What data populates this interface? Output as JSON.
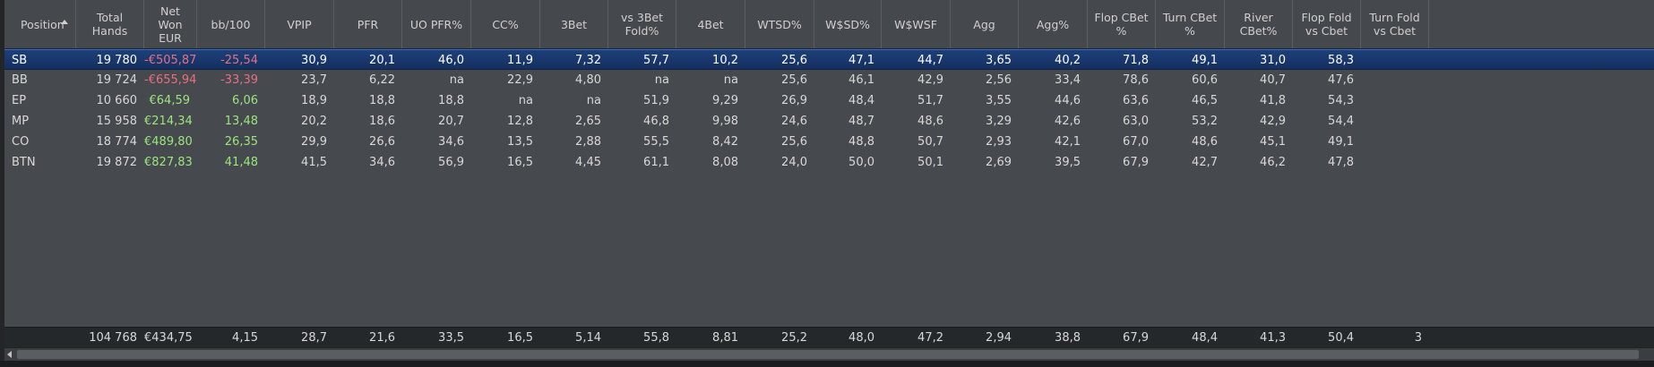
{
  "columns": [
    {
      "label": "Position"
    },
    {
      "label": "Total\nHands"
    },
    {
      "label": "Net\nWon\nEUR"
    },
    {
      "label": "bb/100"
    },
    {
      "label": "VPIP"
    },
    {
      "label": "PFR"
    },
    {
      "label": "UO PFR%"
    },
    {
      "label": "CC%"
    },
    {
      "label": "3Bet"
    },
    {
      "label": "vs 3Bet\nFold%"
    },
    {
      "label": "4Bet"
    },
    {
      "label": "WTSD%"
    },
    {
      "label": "W$SD%"
    },
    {
      "label": "W$WSF"
    },
    {
      "label": "Agg"
    },
    {
      "label": "Agg%"
    },
    {
      "label": "Flop CBet\n%"
    },
    {
      "label": "Turn CBet\n%"
    },
    {
      "label": "River\nCBet%"
    },
    {
      "label": "Flop Fold\nvs Cbet"
    },
    {
      "label": "Turn Fold\nvs Cbet"
    }
  ],
  "rows": [
    {
      "position": "SB",
      "cells": [
        "19 780",
        "-€505,87",
        "-25,54",
        "30,9",
        "20,1",
        "46,0",
        "11,9",
        "7,32",
        "57,7",
        "10,2",
        "25,6",
        "47,1",
        "44,7",
        "3,65",
        "40,2",
        "71,8",
        "49,1",
        "31,0",
        "58,3",
        ""
      ],
      "signs": [
        "",
        "neg",
        "neg"
      ]
    },
    {
      "position": "BB",
      "cells": [
        "19 724",
        "-€655,94",
        "-33,39",
        "23,7",
        "6,22",
        "na",
        "22,9",
        "4,80",
        "na",
        "na",
        "25,6",
        "46,1",
        "42,9",
        "2,56",
        "33,4",
        "78,6",
        "60,6",
        "40,7",
        "47,6",
        ""
      ],
      "signs": [
        "",
        "neg",
        "neg"
      ]
    },
    {
      "position": "EP",
      "cells": [
        "10 660",
        "€64,59",
        "6,06",
        "18,9",
        "18,8",
        "18,8",
        "na",
        "na",
        "51,9",
        "9,29",
        "26,9",
        "48,4",
        "51,7",
        "3,55",
        "44,6",
        "63,6",
        "46,5",
        "41,8",
        "54,3",
        ""
      ],
      "signs": [
        "",
        "posg",
        "posg"
      ]
    },
    {
      "position": "MP",
      "cells": [
        "15 958",
        "€214,34",
        "13,48",
        "20,2",
        "18,6",
        "20,7",
        "12,8",
        "2,65",
        "46,8",
        "9,98",
        "24,6",
        "48,7",
        "48,6",
        "3,29",
        "42,6",
        "63,0",
        "53,2",
        "42,9",
        "54,4",
        ""
      ],
      "signs": [
        "",
        "posg",
        "posg"
      ]
    },
    {
      "position": "CO",
      "cells": [
        "18 774",
        "€489,80",
        "26,35",
        "29,9",
        "26,6",
        "34,6",
        "13,5",
        "2,88",
        "55,5",
        "8,42",
        "25,6",
        "48,8",
        "50,7",
        "2,93",
        "42,1",
        "67,0",
        "48,6",
        "45,1",
        "49,1",
        ""
      ],
      "signs": [
        "",
        "posg",
        "posg"
      ]
    },
    {
      "position": "BTN",
      "cells": [
        "19 872",
        "€827,83",
        "41,48",
        "41,5",
        "34,6",
        "56,9",
        "16,5",
        "4,45",
        "61,1",
        "8,08",
        "24,0",
        "50,0",
        "50,1",
        "2,69",
        "39,5",
        "67,9",
        "42,7",
        "46,2",
        "47,8",
        ""
      ],
      "signs": [
        "",
        "posg",
        "posg"
      ]
    }
  ],
  "totals": [
    "",
    "104 768",
    "€434,75",
    "4,15",
    "28,7",
    "21,6",
    "33,5",
    "16,5",
    "5,14",
    "55,8",
    "8,81",
    "25,2",
    "48,0",
    "47,2",
    "2,94",
    "38,8",
    "67,9",
    "48,4",
    "41,3",
    "50,4",
    "3"
  ],
  "sort_icon": "sort-ascending-icon",
  "scroll_icon": "scroll-left-arrow-icon",
  "colors": {
    "negative": "#e8707f",
    "positive": "#9be67e",
    "selected_row": "#1d3f7a",
    "header_bg": "#45484c"
  }
}
